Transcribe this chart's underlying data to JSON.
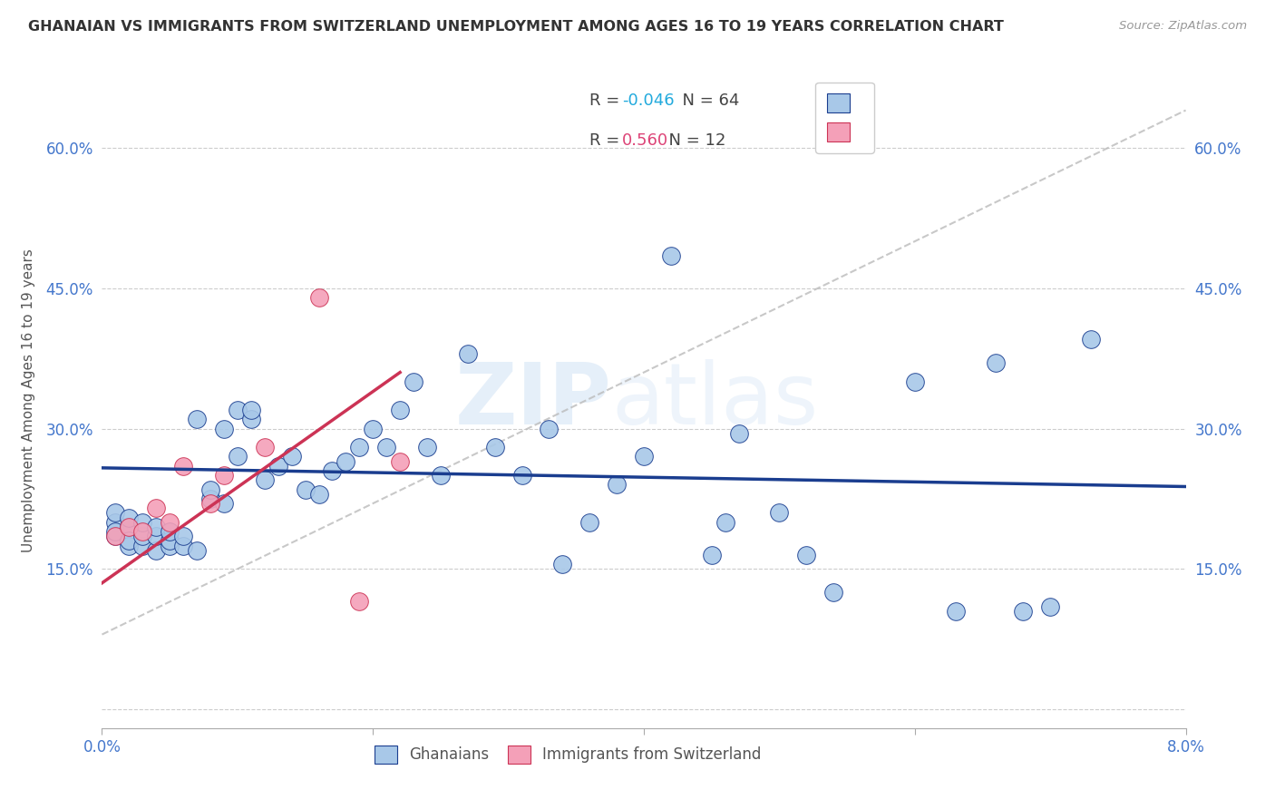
{
  "title": "GHANAIAN VS IMMIGRANTS FROM SWITZERLAND UNEMPLOYMENT AMONG AGES 16 TO 19 YEARS CORRELATION CHART",
  "source": "Source: ZipAtlas.com",
  "ylabel_label": "Unemployment Among Ages 16 to 19 years",
  "xlim": [
    0.0,
    0.08
  ],
  "ylim": [
    -0.02,
    0.68
  ],
  "legend1_color": "#a8c8e8",
  "legend2_color": "#f4a0b8",
  "line1_color": "#1a3d8f",
  "line2_color": "#cc3355",
  "dash_color": "#bbbbbb",
  "background_color": "#ffffff",
  "ghanaian_x": [
    0.001,
    0.001,
    0.001,
    0.001,
    0.002,
    0.002,
    0.002,
    0.002,
    0.003,
    0.003,
    0.003,
    0.004,
    0.004,
    0.004,
    0.005,
    0.005,
    0.005,
    0.006,
    0.006,
    0.007,
    0.007,
    0.008,
    0.008,
    0.009,
    0.009,
    0.01,
    0.01,
    0.011,
    0.011,
    0.012,
    0.013,
    0.014,
    0.015,
    0.016,
    0.017,
    0.018,
    0.019,
    0.02,
    0.021,
    0.022,
    0.023,
    0.024,
    0.025,
    0.027,
    0.029,
    0.031,
    0.033,
    0.034,
    0.036,
    0.038,
    0.04,
    0.042,
    0.045,
    0.046,
    0.047,
    0.05,
    0.052,
    0.054,
    0.06,
    0.063,
    0.066,
    0.068,
    0.07,
    0.073
  ],
  "ghanaian_y": [
    0.2,
    0.21,
    0.185,
    0.19,
    0.195,
    0.175,
    0.18,
    0.205,
    0.175,
    0.185,
    0.2,
    0.17,
    0.185,
    0.195,
    0.175,
    0.18,
    0.19,
    0.175,
    0.185,
    0.17,
    0.31,
    0.225,
    0.235,
    0.22,
    0.3,
    0.27,
    0.32,
    0.31,
    0.32,
    0.245,
    0.26,
    0.27,
    0.235,
    0.23,
    0.255,
    0.265,
    0.28,
    0.3,
    0.28,
    0.32,
    0.35,
    0.28,
    0.25,
    0.38,
    0.28,
    0.25,
    0.3,
    0.155,
    0.2,
    0.24,
    0.27,
    0.485,
    0.165,
    0.2,
    0.295,
    0.21,
    0.165,
    0.125,
    0.35,
    0.105,
    0.37,
    0.105,
    0.11,
    0.395
  ],
  "swiss_x": [
    0.001,
    0.002,
    0.003,
    0.004,
    0.005,
    0.006,
    0.008,
    0.009,
    0.012,
    0.016,
    0.019,
    0.022
  ],
  "swiss_y": [
    0.185,
    0.195,
    0.19,
    0.215,
    0.2,
    0.26,
    0.22,
    0.25,
    0.28,
    0.44,
    0.115,
    0.265
  ],
  "blue_line_x": [
    0.0,
    0.08
  ],
  "blue_line_y": [
    0.258,
    0.238
  ],
  "pink_line_x": [
    0.0,
    0.022
  ],
  "pink_line_y": [
    0.135,
    0.36
  ],
  "dash_line_x": [
    0.0,
    0.08
  ],
  "dash_line_y": [
    0.08,
    0.64
  ]
}
